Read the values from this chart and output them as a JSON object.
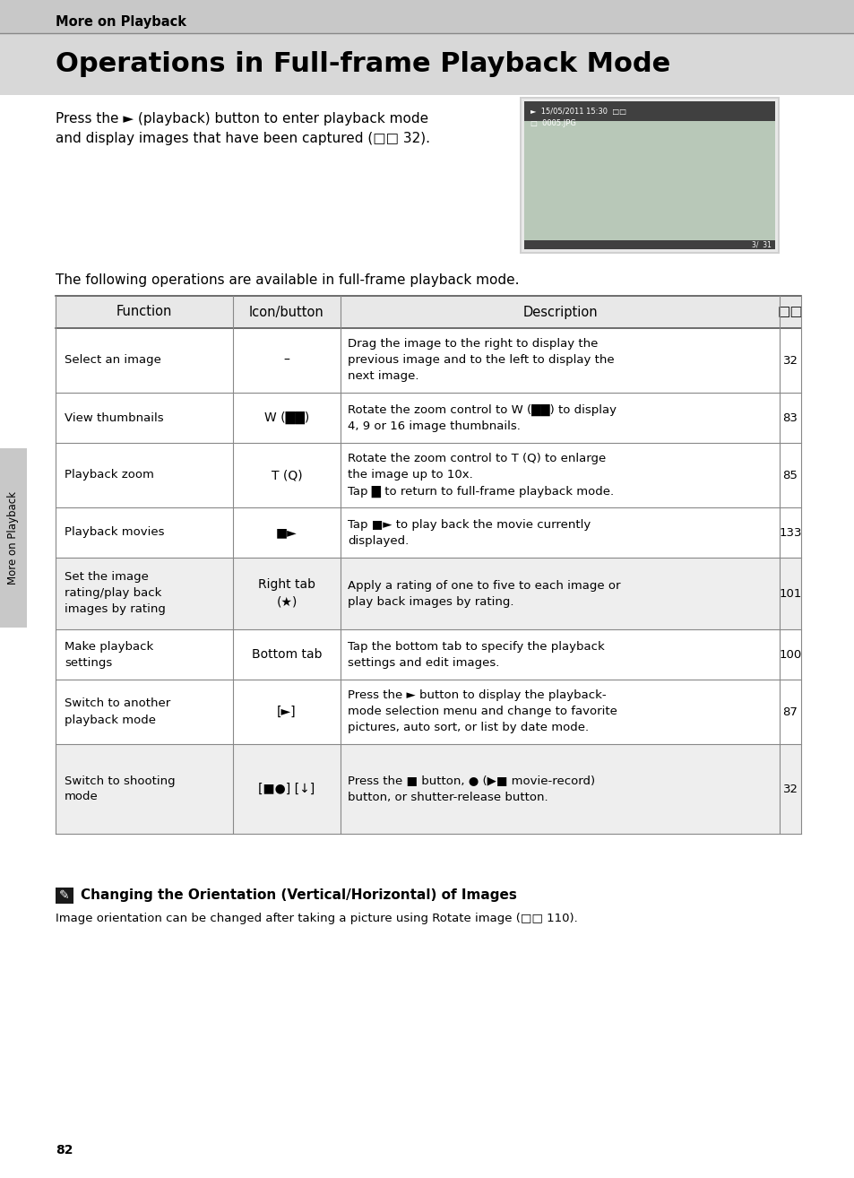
{
  "page_bg": "#ffffff",
  "header_bg": "#c8c8c8",
  "header_text": "More on Playback",
  "title_bg": "#d8d8d8",
  "title_text": "Operations in Full-frame Playback Mode",
  "intro_text": "Press the ► (playback) button to enter playback mode\nand display images that have been captured (□□ 32).",
  "table_intro": "The following operations are available in full-frame playback mode.",
  "table_header": [
    "Function",
    "Icon/button",
    "Description",
    "□□"
  ],
  "col_header_bg": "#e8e8e8",
  "row_bg_alt": "#f0f0f0",
  "sidebar_text": "More on Playback",
  "sidebar_bg": "#c8c8c8",
  "table_rows": [
    {
      "function": "Select an image",
      "icon": "–",
      "description": "Drag the image to the right to display the\nprevious image and to the left to display the\nnext image.",
      "page": "32",
      "icon_is_text": true,
      "shaded": false
    },
    {
      "function": "View thumbnails",
      "icon": "W (██)",
      "description": "Rotate the zoom control to W (██) to display\n4, 9 or 16 image thumbnails.",
      "page": "83",
      "icon_is_text": true,
      "shaded": false
    },
    {
      "function": "Playback zoom",
      "icon": "T (Q)",
      "description": "Rotate the zoom control to T (Q) to enlarge\nthe image up to 10x.\nTap █ to return to full-frame playback mode.",
      "page": "85",
      "icon_is_text": true,
      "shaded": false
    },
    {
      "function": "Playback movies",
      "icon": "►",
      "description": "Tap ► to play back the movie currently\ndisplayed.",
      "page": "133",
      "icon_is_text": true,
      "shaded": false
    },
    {
      "function": "Set the image\nrating/play back\nimages by rating",
      "icon": "Right tab\n(★)",
      "description": "Apply a rating of one to five to each image or\nplay back images by rating.",
      "page": "101",
      "icon_is_text": true,
      "shaded": true
    },
    {
      "function": "Make playback\nsettings",
      "icon": "Bottom tab",
      "description": "Tap the bottom tab to specify the playback\nsettings and edit images.",
      "page": "100",
      "icon_is_text": true,
      "shaded": false
    },
    {
      "function": "Switch to another\nplayback mode",
      "icon": "[►]",
      "description": "Press the ► button to display the playback-\nmode selection menu and change to favorite\npictures, auto sort, or list by date mode.",
      "page": "87",
      "icon_is_text": true,
      "shaded": false
    },
    {
      "function": "Switch to shooting\nmode",
      "icon": "[●] [↓]",
      "description": "Press the ■ button, ● (▶■ movie-record)\nbutton, or shutter-release button.",
      "page": "32",
      "icon_is_text": true,
      "shaded": true
    }
  ],
  "note_title": "Changing the Orientation (Vertical/Horizontal) of Images",
  "note_text": "Image orientation can be changed after taking a picture using Rotate image (□□ 110).",
  "page_number": "82"
}
